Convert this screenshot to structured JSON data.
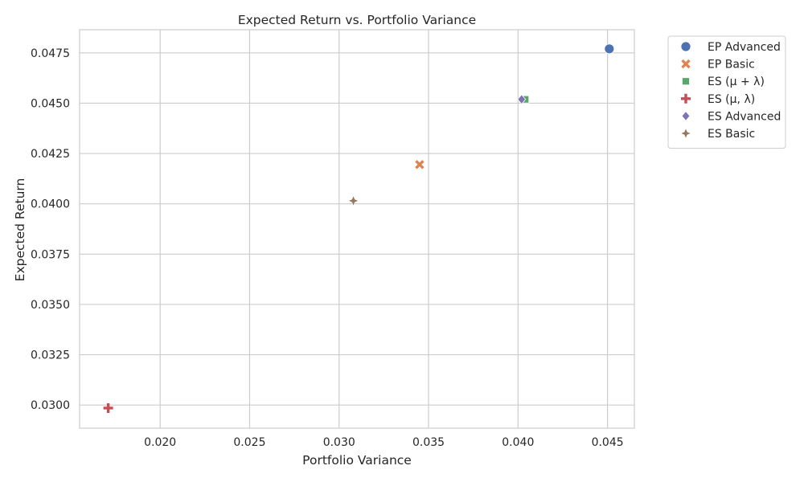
{
  "chart_data": {
    "type": "scatter",
    "title": "Expected Return vs. Portfolio Variance",
    "xlabel": "Portfolio Variance",
    "ylabel": "Expected Return",
    "xlim": [
      0.0155,
      0.0465
    ],
    "ylim": [
      0.02885,
      0.04865
    ],
    "xticks": [
      0.02,
      0.025,
      0.03,
      0.035,
      0.04,
      0.045
    ],
    "xtick_labels": [
      "0.020",
      "0.025",
      "0.030",
      "0.035",
      "0.040",
      "0.045"
    ],
    "yticks": [
      0.03,
      0.0325,
      0.035,
      0.0375,
      0.04,
      0.0425,
      0.045,
      0.0475
    ],
    "ytick_labels": [
      "0.0300",
      "0.0325",
      "0.0350",
      "0.0375",
      "0.0400",
      "0.0425",
      "0.0450",
      "0.0475"
    ],
    "grid": true,
    "legend_position": "outside-top-right",
    "series": [
      {
        "name": "EP Advanced",
        "marker": "circle",
        "color": "#4c72b0",
        "x": [
          0.0451
        ],
        "y": [
          0.0477
        ]
      },
      {
        "name": "EP Basic",
        "marker": "x",
        "color": "#dd8452",
        "x": [
          0.0345
        ],
        "y": [
          0.04195
        ]
      },
      {
        "name": "ES (μ + λ)",
        "marker": "square",
        "color": "#55a868",
        "x": [
          0.0404
        ],
        "y": [
          0.04519
        ]
      },
      {
        "name": "ES (μ, λ)",
        "marker": "plus",
        "color": "#c44e52",
        "x": [
          0.0171
        ],
        "y": [
          0.02985
        ]
      },
      {
        "name": "ES Advanced",
        "marker": "diamond",
        "color": "#8172b3",
        "x": [
          0.0402
        ],
        "y": [
          0.04519
        ]
      },
      {
        "name": "ES Basic",
        "marker": "star4",
        "color": "#937860",
        "x": [
          0.0308
        ],
        "y": [
          0.04015
        ]
      }
    ]
  }
}
